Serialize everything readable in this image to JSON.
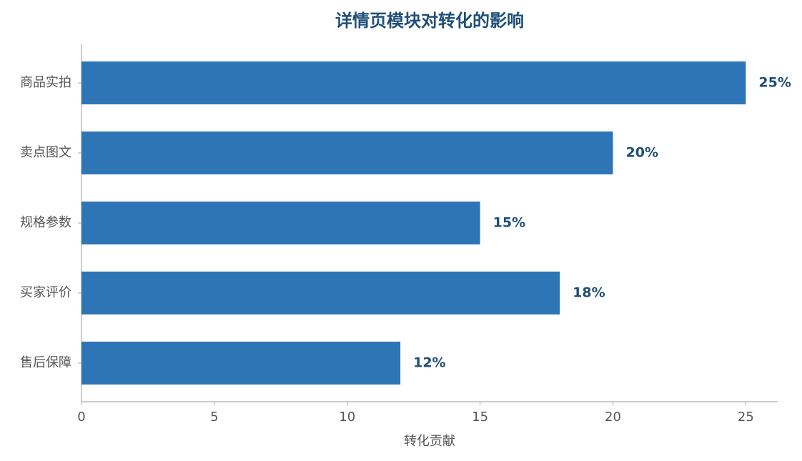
{
  "chart_data": {
    "type": "barh",
    "title": "详情页模块对转化的影响",
    "xlabel": "转化贡献",
    "categories": [
      "商品实拍",
      "卖点图文",
      "规格参数",
      "买家评价",
      "售后保障"
    ],
    "values": [
      25,
      20,
      15,
      18,
      12
    ],
    "value_labels": [
      "25%",
      "20%",
      "15%",
      "18%",
      "12%"
    ],
    "color": "#2e75b6",
    "xlim": [
      0,
      26.2
    ],
    "xticks": [
      0,
      5,
      10,
      15,
      20,
      25
    ]
  }
}
